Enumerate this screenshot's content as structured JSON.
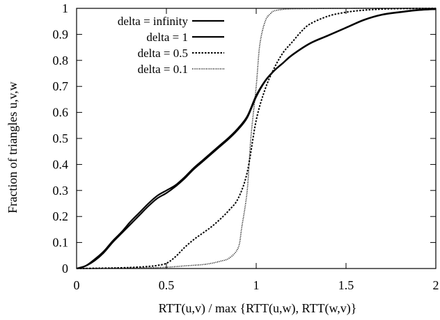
{
  "chart_data": {
    "type": "line",
    "title": "",
    "xlabel": "RTT(u,v) / max {RTT(u,w), RTT(w,v)}",
    "ylabel": "Fraction of triangles u,v,w",
    "xlim": [
      0,
      2
    ],
    "ylim": [
      0,
      1
    ],
    "xticks": [
      0,
      0.5,
      1,
      1.5,
      2
    ],
    "xtick_labels": [
      "0",
      "0.5",
      "1",
      "1.5",
      "2"
    ],
    "yticks": [
      0,
      0.1,
      0.2,
      0.3,
      0.4,
      0.5,
      0.6,
      0.7,
      0.8,
      0.9,
      1
    ],
    "ytick_labels": [
      "0",
      "0.1",
      "0.2",
      "0.3",
      "0.4",
      "0.5",
      "0.6",
      "0.7",
      "0.8",
      "0.9",
      "1"
    ],
    "grid": false,
    "legend_position": "top-left",
    "series": [
      {
        "name": "delta = infinity",
        "style": "solid",
        "color": "#000000",
        "x": [
          0,
          0.05,
          0.1,
          0.15,
          0.2,
          0.25,
          0.3,
          0.35,
          0.4,
          0.45,
          0.5,
          0.55,
          0.6,
          0.65,
          0.7,
          0.75,
          0.8,
          0.85,
          0.9,
          0.95,
          1.0,
          1.05,
          1.1,
          1.15,
          1.2,
          1.3,
          1.4,
          1.5,
          1.6,
          1.7,
          1.8,
          1.9,
          2.0
        ],
        "y": [
          0,
          0.01,
          0.03,
          0.06,
          0.1,
          0.135,
          0.17,
          0.205,
          0.24,
          0.27,
          0.29,
          0.315,
          0.345,
          0.38,
          0.41,
          0.44,
          0.47,
          0.5,
          0.535,
          0.58,
          0.66,
          0.72,
          0.76,
          0.79,
          0.82,
          0.865,
          0.895,
          0.925,
          0.955,
          0.975,
          0.985,
          0.993,
          0.997
        ]
      },
      {
        "name": "delta = 1",
        "style": "solid",
        "color": "#000000",
        "x": [
          0,
          0.05,
          0.1,
          0.15,
          0.2,
          0.25,
          0.3,
          0.35,
          0.4,
          0.45,
          0.5,
          0.55,
          0.6,
          0.65,
          0.7,
          0.75,
          0.8,
          0.85,
          0.9,
          0.95,
          1.0,
          1.05,
          1.1,
          1.15,
          1.2,
          1.3,
          1.4,
          1.5,
          1.6,
          1.7,
          1.8,
          1.9,
          2.0
        ],
        "y": [
          0,
          0.01,
          0.035,
          0.065,
          0.105,
          0.14,
          0.18,
          0.215,
          0.25,
          0.28,
          0.3,
          0.32,
          0.35,
          0.385,
          0.415,
          0.445,
          0.475,
          0.505,
          0.54,
          0.585,
          0.665,
          0.722,
          0.761,
          0.791,
          0.821,
          0.866,
          0.896,
          0.926,
          0.956,
          0.976,
          0.986,
          0.994,
          0.997
        ]
      },
      {
        "name": "delta = 0.5",
        "style": "dashed",
        "color": "#000000",
        "x": [
          0,
          0.1,
          0.2,
          0.3,
          0.4,
          0.45,
          0.5,
          0.55,
          0.6,
          0.65,
          0.7,
          0.75,
          0.8,
          0.85,
          0.9,
          0.95,
          1.0,
          1.05,
          1.1,
          1.15,
          1.2,
          1.25,
          1.3,
          1.4,
          1.5,
          1.6,
          1.7,
          1.8,
          2.0
        ],
        "y": [
          0,
          0.001,
          0.002,
          0.004,
          0.008,
          0.012,
          0.02,
          0.045,
          0.08,
          0.11,
          0.135,
          0.16,
          0.19,
          0.225,
          0.27,
          0.37,
          0.57,
          0.69,
          0.77,
          0.83,
          0.87,
          0.91,
          0.94,
          0.97,
          0.985,
          0.993,
          0.997,
          0.999,
          1.0
        ]
      },
      {
        "name": "delta = 0.1",
        "style": "dotted",
        "color": "#000000",
        "x": [
          0,
          0.2,
          0.4,
          0.5,
          0.6,
          0.7,
          0.75,
          0.8,
          0.85,
          0.9,
          0.92,
          0.95,
          0.97,
          1.0,
          1.02,
          1.05,
          1.08,
          1.1,
          1.15,
          1.2,
          1.3,
          1.5,
          2.0
        ],
        "y": [
          0,
          0.001,
          0.003,
          0.005,
          0.01,
          0.015,
          0.02,
          0.028,
          0.04,
          0.08,
          0.16,
          0.3,
          0.5,
          0.7,
          0.86,
          0.95,
          0.98,
          0.99,
          0.996,
          0.998,
          0.999,
          1.0,
          1.0
        ]
      }
    ]
  }
}
